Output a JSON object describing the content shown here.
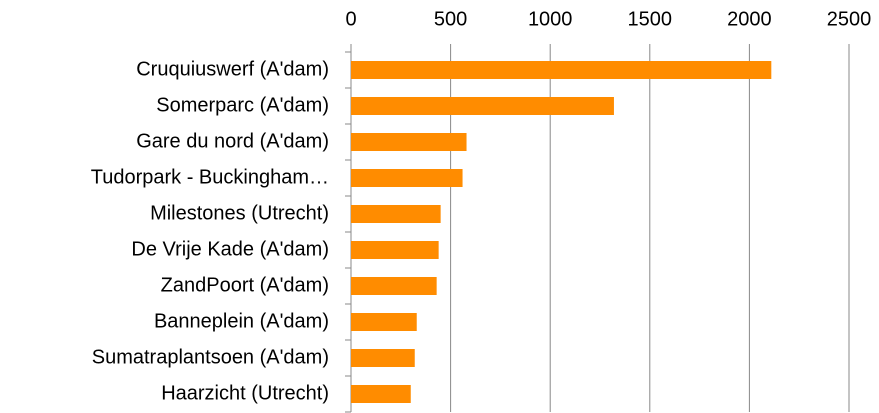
{
  "chart_data": {
    "type": "bar",
    "orientation": "horizontal",
    "categories": [
      "Cruquiuswerf (A'dam)",
      "Somerparc (A'dam)",
      "Gare du nord (A'dam)",
      "Tudorpark - Buckingham…",
      "Milestones (Utrecht)",
      "De Vrije Kade (A'dam)",
      "ZandPoort (A'dam)",
      "Banneplein (A'dam)",
      "Sumatraplantsoen (A'dam)",
      "Haarzicht (Utrecht)"
    ],
    "values": [
      2110,
      1320,
      580,
      560,
      450,
      440,
      430,
      330,
      320,
      300
    ],
    "color": "#ff8c00",
    "xlim": [
      0,
      2500
    ],
    "xticks": [
      0,
      500,
      1000,
      1500,
      2000,
      2500
    ],
    "grid": true
  }
}
